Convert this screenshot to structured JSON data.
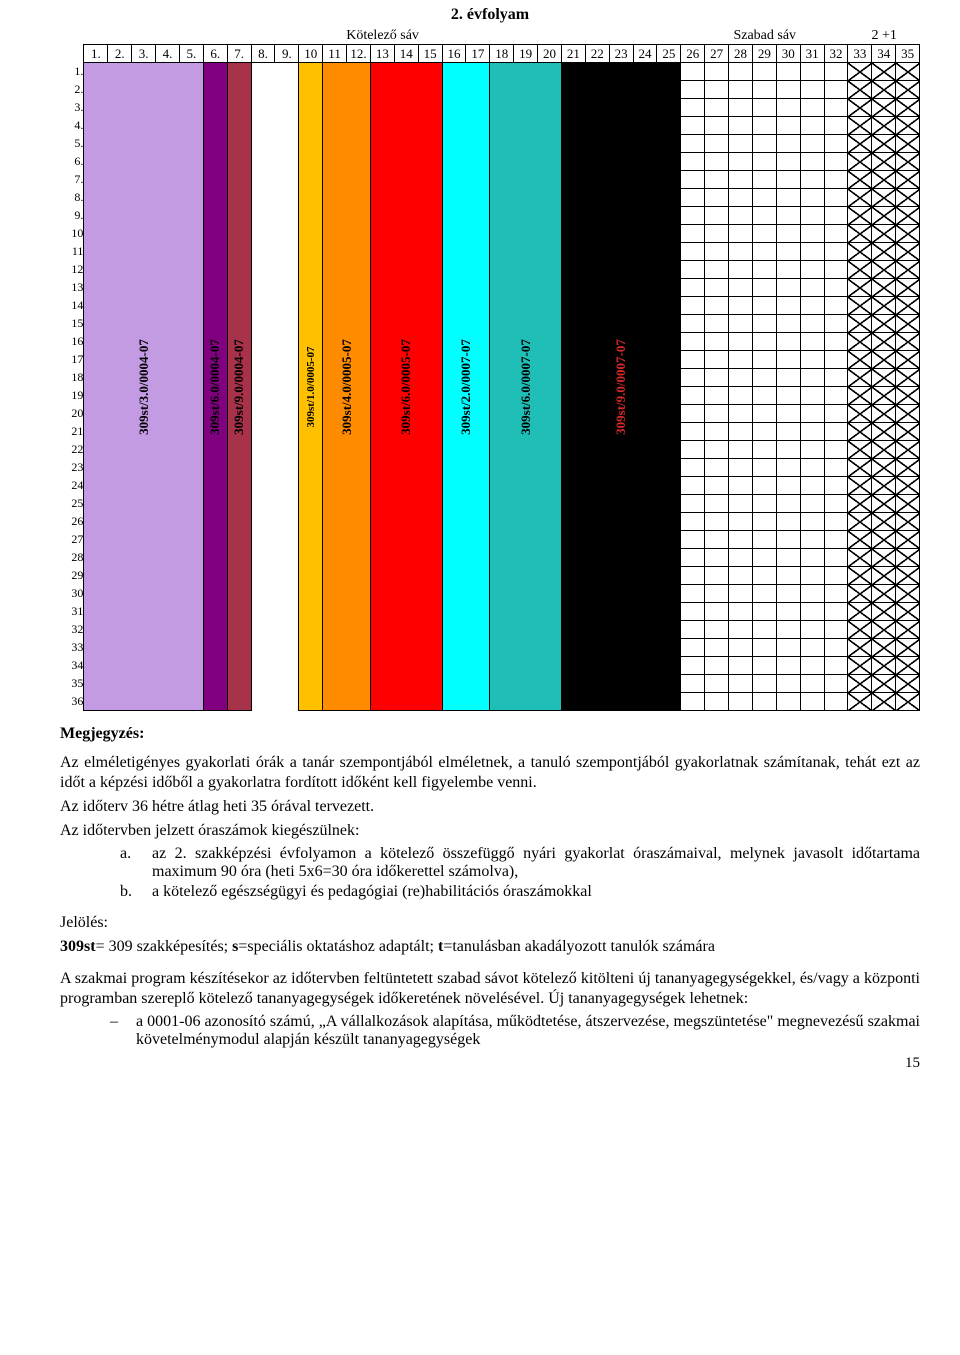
{
  "title": "2. évfolyam",
  "bands": {
    "kotelezo": "Kötelező sáv",
    "szabad": "Szabad sáv",
    "plus": "2 +1"
  },
  "colHeaders": [
    "1.",
    "2.",
    "3.",
    "4.",
    "5.",
    "6.",
    "7.",
    "8.",
    "9.",
    "10",
    "11",
    "12.",
    "13",
    "14",
    "15",
    "16",
    "17",
    "18",
    "19",
    "20",
    "21",
    "22",
    "23",
    "24",
    "25",
    "26",
    "27",
    "28",
    "29",
    "30",
    "31",
    "32",
    "33",
    "34",
    "35"
  ],
  "rowLabels": [
    "1.",
    "2.",
    "3.",
    "4.",
    "5.",
    "6.",
    "7.",
    "8.",
    "9.",
    "10",
    "11",
    "12",
    "13",
    "14",
    "15",
    "16",
    "17",
    "18",
    "19",
    "20",
    "21",
    "22",
    "23",
    "24",
    "25",
    "26",
    "27",
    "28",
    "29",
    "30",
    "31",
    "32",
    "33",
    "34",
    "35",
    "36"
  ],
  "bars": [
    {
      "label": "309st/3.0/0004-07",
      "startCol": 1,
      "span": 5,
      "color": "#c39be3",
      "textColor": "#000000",
      "smallText": false
    },
    {
      "label": "309st/6.0/0004-07",
      "startCol": 6,
      "span": 1,
      "color": "#800080",
      "textColor": "#000000",
      "smallText": false
    },
    {
      "label": "309st/9.0/0004-07",
      "startCol": 7,
      "span": 1,
      "color": "#a8324a",
      "textColor": "#000000",
      "smallText": false
    },
    {
      "label": "309st/1.0/0005-07",
      "startCol": 10,
      "span": 1,
      "color": "#ffc000",
      "textColor": "#000000",
      "smallText": true
    },
    {
      "label": "309st/4.0/0005-07",
      "startCol": 11,
      "span": 2,
      "color": "#ff8c00",
      "textColor": "#000000",
      "smallText": false
    },
    {
      "label": "309st/6.0/0005-07",
      "startCol": 13,
      "span": 3,
      "color": "#ff0000",
      "textColor": "#000000",
      "smallText": false
    },
    {
      "label": "309st/2.0/0007-07",
      "startCol": 16,
      "span": 2,
      "color": "#00ffff",
      "textColor": "#000000",
      "smallText": false
    },
    {
      "label": "309st/6.0/0007-07",
      "startCol": 18,
      "span": 3,
      "color": "#1fbfb8",
      "textColor": "#000000",
      "smallText": false
    },
    {
      "label": "309st/9.0/0007-07",
      "startCol": 21,
      "span": 5,
      "color": "#000000",
      "textColor": "#d62828",
      "smallText": false
    }
  ],
  "emptyCols": [
    8,
    9
  ],
  "gridCols": [
    26,
    27,
    28,
    29,
    30,
    31,
    32
  ],
  "xCols": [
    33,
    34,
    35
  ],
  "transitionRow": 18,
  "notesHeader": "Megjegyzés:",
  "p1": "Az elméletigényes gyakorlati órák a tanár szempontjából elméletnek, a tanuló szempontjából gyakorlatnak számítanak, tehát ezt az időt a képzési időből a gyakorlatra fordított időként kell figyelembe venni.",
  "p2": "Az időterv 36 hétre átlag heti 35 órával tervezett.",
  "p3": "Az időtervben jelzett óraszámok kiegészülnek:",
  "listA": {
    "label": "a.",
    "text": "az 2. szakképzési évfolyamon a kötelező összefüggő nyári gyakorlat óraszámaival, melynek javasolt időtartama maximum 90 óra (heti 5x6=30 óra időkerettel számolva),"
  },
  "listB": {
    "label": "b.",
    "text": "a kötelező egészségügyi és pedagógiai (re)habilitációs óraszámokkal"
  },
  "jelHeader": "Jelölés:",
  "jelLine": "309st= 309 szakképesítés; s=speciális oktatáshoz adaptált; t=tanulásban akadályozott tanulók számára",
  "p4": "A szakmai program készítésekor az időtervben feltüntetett szabad sávot kötelező kitölteni új tananyagegységekkel, és/vagy a központi programban szereplő kötelező tananyagegységek időkeretének növelésével. Új tananyagegységek lehetnek:",
  "dash1": "a 0001-06 azonosító számú, „A vállalkozások alapítása, működtetése, átszervezése, megszüntetése\" megnevezésű szakmai követelménymodul alapján készült tananyagegységek",
  "pageNum": "15",
  "boldTokens": [
    "309st",
    "s",
    "t"
  ]
}
